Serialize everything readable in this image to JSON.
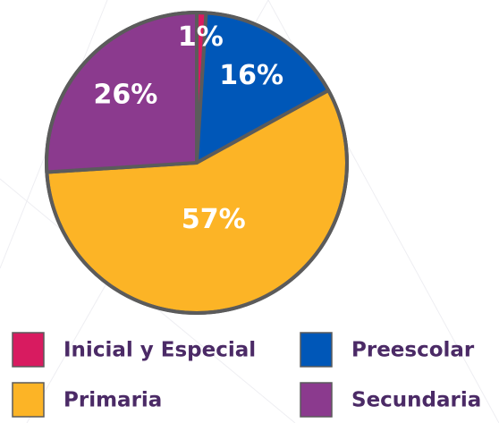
{
  "chart_data": {
    "type": "pie",
    "categories": [
      "Inicial y Especial",
      "Preescolar",
      "Primaria",
      "Secundaria"
    ],
    "values": [
      1,
      16,
      57,
      26
    ],
    "value_labels": [
      "1%",
      "16%",
      "57%",
      "26%"
    ],
    "colors": [
      "#d81b60",
      "#0057b8",
      "#fcb426",
      "#8b3a8e"
    ],
    "legend": "bottom"
  }
}
